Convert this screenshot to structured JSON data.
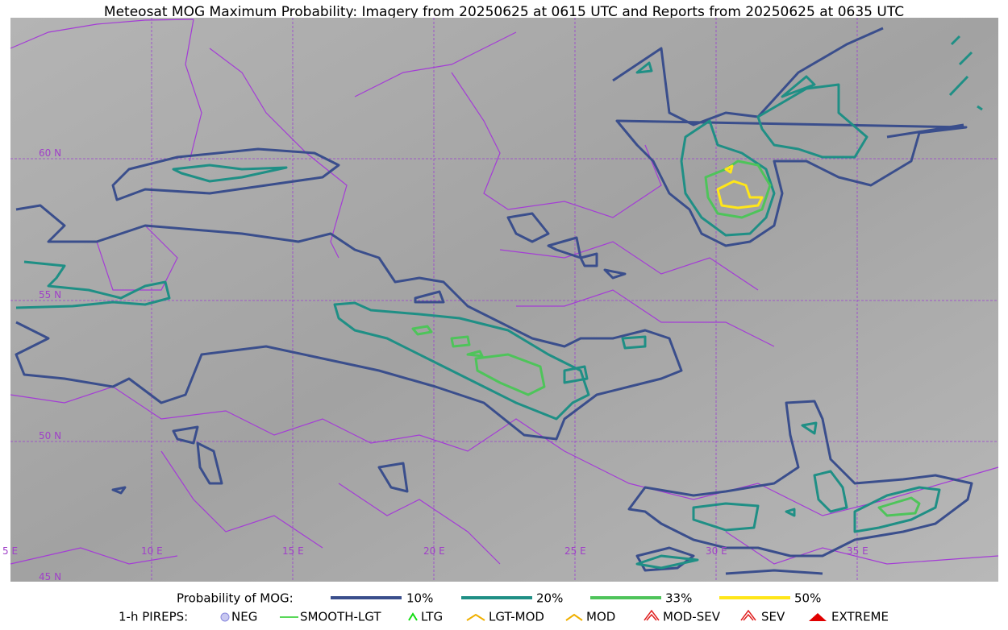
{
  "title": "Meteosat MOG Maximum Probability: Imagery from 20250625 at 0615 UTC and Reports from 20250625 at 0635 UTC",
  "map": {
    "lat_labels": [
      "60 N",
      "55 N",
      "50 N",
      "45 N"
    ],
    "lon_labels": [
      "5 E",
      "10 E",
      "15 E",
      "20 E",
      "25 E",
      "30 E",
      "35 E"
    ]
  },
  "legend": {
    "probability_label": "Probability of MOG:",
    "probability_items": [
      "10%",
      "20%",
      "33%",
      "50%"
    ],
    "pireps_label": "1-h PIREPS:",
    "pireps_items": [
      "NEG",
      "SMOOTH-LGT",
      "LTG",
      "LGT-MOD",
      "MOD",
      "MOD-SEV",
      "SEV",
      "EXTREME"
    ]
  }
}
